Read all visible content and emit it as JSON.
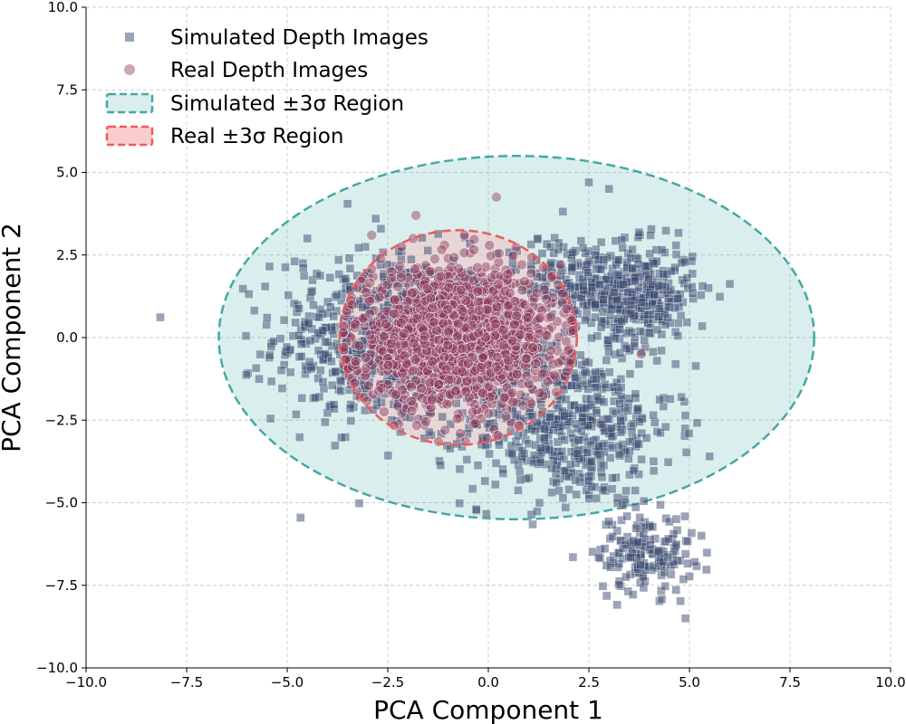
{
  "chart_data": {
    "type": "scatter",
    "xlabel": "PCA Component 1",
    "ylabel": "PCA Component 2",
    "xlim": [
      -10.0,
      10.0
    ],
    "ylim": [
      -10.0,
      10.0
    ],
    "xticks": [
      "−10.0",
      "−7.5",
      "−5.0",
      "−2.5",
      "0.0",
      "2.5",
      "5.0",
      "7.5",
      "10.0"
    ],
    "yticks": [
      "−10.0",
      "−7.5",
      "−5.0",
      "−2.5",
      "0.0",
      "2.5",
      "5.0",
      "7.5",
      "10.0"
    ],
    "xtick_values": [
      -10,
      -7.5,
      -5,
      -2.5,
      0,
      2.5,
      5,
      7.5,
      10
    ],
    "ytick_values": [
      -10,
      -7.5,
      -5,
      -2.5,
      0,
      2.5,
      5,
      7.5,
      10
    ],
    "grid": true,
    "legend_position": "upper-left",
    "legend": [
      {
        "label": "Simulated Depth Images",
        "kind": "square-marker",
        "color": "#3a4a70"
      },
      {
        "label": "Real Depth Images",
        "kind": "circle-marker",
        "color": "#8b3a5c"
      },
      {
        "label": "Simulated ±3σ Region",
        "kind": "patch",
        "color": "#45a8a3"
      },
      {
        "label": "Real ±3σ Region",
        "kind": "patch",
        "color": "#ef5b5b"
      }
    ],
    "series": [
      {
        "name": "Simulated Depth Images",
        "marker": "square",
        "color": "#3a4a70",
        "clusters": [
          {
            "cx": -2.5,
            "cy": 0.0,
            "sx": 1.4,
            "sy": 1.3,
            "n": 650
          },
          {
            "cx": 2.0,
            "cy": -2.7,
            "sx": 1.3,
            "sy": 1.2,
            "n": 520
          },
          {
            "cx": 3.6,
            "cy": 1.3,
            "sx": 0.75,
            "sy": 0.75,
            "n": 420
          },
          {
            "cx": 3.9,
            "cy": -6.5,
            "sx": 0.6,
            "sy": 0.6,
            "n": 160
          },
          {
            "cx": 1.8,
            "cy": 1.8,
            "sx": 0.6,
            "sy": 0.7,
            "n": 120
          }
        ],
        "outliers": [
          [
            -4.5,
            3.0
          ],
          [
            -4.6,
            2.1
          ],
          [
            -3.5,
            4.05
          ],
          [
            -2.8,
            3.6
          ],
          [
            2.5,
            4.7
          ],
          [
            3.0,
            4.5
          ],
          [
            4.9,
            -8.5
          ],
          [
            5.3,
            -6.0
          ],
          [
            5.5,
            -3.6
          ],
          [
            4.8,
            -1.8
          ],
          [
            -0.3,
            -5.2
          ],
          [
            -2.4,
            -2.5
          ]
        ]
      },
      {
        "name": "Real Depth Images",
        "marker": "circle",
        "color": "#8b3a5c",
        "clusters": [
          {
            "cx": -0.8,
            "cy": 0.0,
            "sx": 1.2,
            "sy": 1.0,
            "n": 1700
          }
        ],
        "outliers": [
          [
            0.2,
            4.25
          ],
          [
            -1.8,
            3.7
          ],
          [
            -2.9,
            3.1
          ],
          [
            3.8,
            -0.5
          ],
          [
            -0.6,
            3.1
          ],
          [
            1.8,
            2.2
          ]
        ]
      }
    ],
    "regions": [
      {
        "name": "Simulated ±3σ Region",
        "cx": 0.7,
        "cy": 0.0,
        "rx": 7.4,
        "ry": 5.5,
        "fill": "#45a8a3",
        "edge": "#45a8a3"
      },
      {
        "name": "Real ±3σ Region",
        "cx": -0.75,
        "cy": 0.0,
        "rx": 2.95,
        "ry": 3.25,
        "fill": "#f5b8b8",
        "edge": "#ef5b5b"
      }
    ]
  }
}
